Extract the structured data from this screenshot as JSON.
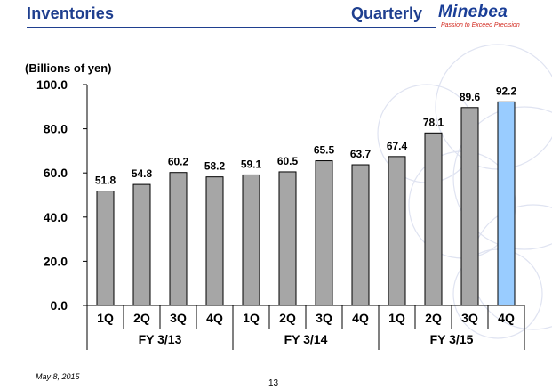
{
  "header": {
    "title": "Inventories",
    "subtitle": "Quarterly",
    "logo_name": "Minebea",
    "logo_tagline": "Passion to Exceed Precision"
  },
  "colors": {
    "title": "#1f3f8f",
    "bar_default": "#a6a6a6",
    "bar_highlight": "#99ccff",
    "logo_tagline": "#d2281e"
  },
  "chart_data": {
    "type": "bar",
    "unit_label": "(Billions of yen)",
    "ylim": [
      0,
      100
    ],
    "yticks": [
      "0.0",
      "20.0",
      "40.0",
      "60.0",
      "80.0",
      "100.0"
    ],
    "categories": [
      "1Q",
      "2Q",
      "3Q",
      "4Q",
      "1Q",
      "2Q",
      "3Q",
      "4Q",
      "1Q",
      "2Q",
      "3Q",
      "4Q"
    ],
    "values": [
      51.8,
      54.8,
      60.2,
      58.2,
      59.1,
      60.5,
      65.5,
      63.7,
      67.4,
      78.1,
      89.6,
      92.2
    ],
    "labels": [
      "51.8",
      "54.8",
      "60.2",
      "58.2",
      "59.1",
      "60.5",
      "65.5",
      "63.7",
      "67.4",
      "78.1",
      "89.6",
      "92.2"
    ],
    "groups": [
      {
        "name": "FY 3/13",
        "count": 4
      },
      {
        "name": "FY 3/14",
        "count": 4
      },
      {
        "name": "FY 3/15",
        "count": 4
      }
    ],
    "highlight_index": 11,
    "grid": false
  },
  "footer": {
    "date": "May 8, 2015",
    "page": "13"
  }
}
